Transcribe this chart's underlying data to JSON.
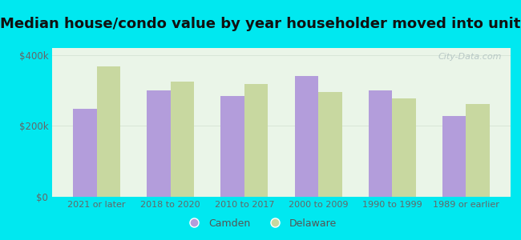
{
  "title": "Median house/condo value by year householder moved into unit",
  "categories": [
    "2021 or later",
    "2018 to 2020",
    "2010 to 2017",
    "2000 to 2009",
    "1990 to 1999",
    "1989 or earlier"
  ],
  "camden_values": [
    248000,
    300000,
    285000,
    340000,
    300000,
    228000
  ],
  "delaware_values": [
    368000,
    325000,
    318000,
    295000,
    278000,
    263000
  ],
  "camden_color": "#b39ddb",
  "delaware_color": "#c8d8a0",
  "background_outer": "#00e8f0",
  "background_inner_top": "#eaf5e8",
  "background_inner_bottom": "#f8fef8",
  "ylim": [
    0,
    420000
  ],
  "yticks": [
    0,
    200000,
    400000
  ],
  "ytick_labels": [
    "$0",
    "$200k",
    "$400k"
  ],
  "watermark": "City-Data.com",
  "legend_camden": "Camden",
  "legend_delaware": "Delaware",
  "title_fontsize": 13,
  "bar_width": 0.32
}
